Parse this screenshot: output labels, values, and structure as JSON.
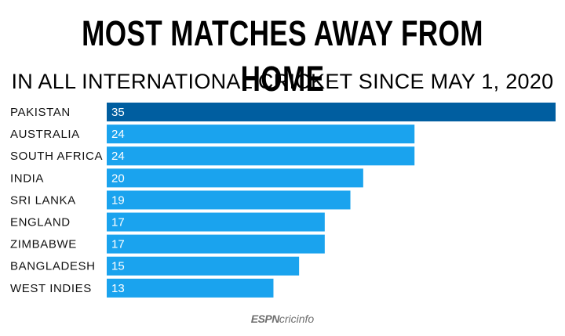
{
  "chart_data": {
    "type": "bar",
    "orientation": "horizontal",
    "title": "MOST MATCHES AWAY FROM HOME",
    "subtitle": "IN ALL INTERNATIONAL CRICKET SINCE MAY 1, 2020",
    "categories": [
      "PAKISTAN",
      "AUSTRALIA",
      "SOUTH AFRICA",
      "INDIA",
      "SRI LANKA",
      "ENGLAND",
      "ZIMBABWE",
      "BANGLADESH",
      "WEST INDIES"
    ],
    "values": [
      35,
      24,
      24,
      20,
      19,
      17,
      17,
      15,
      13
    ],
    "xlim": [
      0,
      35
    ],
    "grid": false,
    "highlight_index": 0,
    "colors": {
      "bar": "#1aa3ee",
      "highlight": "#005ea0",
      "label": "#ffffff",
      "category": "#111111"
    }
  },
  "footer": {
    "espn": "ESPN",
    "cricinfo": "cricinfo"
  }
}
